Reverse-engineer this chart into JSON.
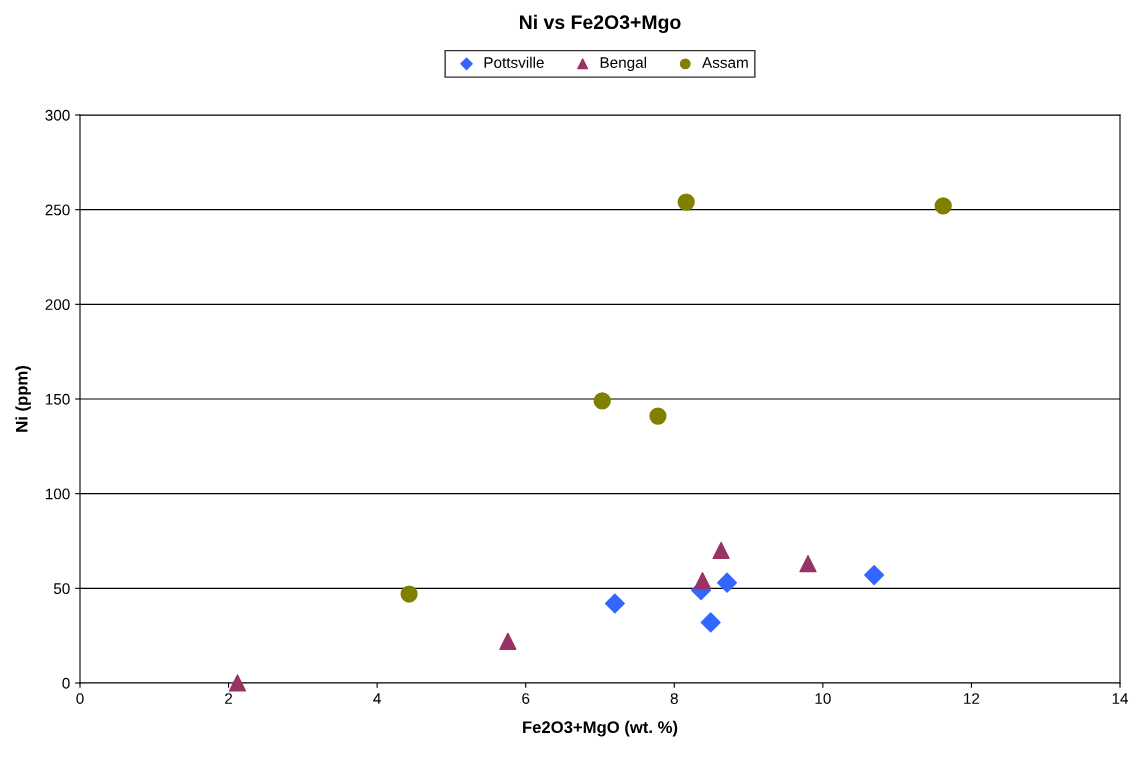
{
  "chart_data": {
    "type": "scatter",
    "title": "Ni vs Fe2O3+Mgo",
    "xlabel": "Fe2O3+MgO (wt. %)",
    "ylabel": "Ni (ppm)",
    "xlim": [
      0,
      14
    ],
    "xticks": [
      0,
      2,
      4,
      6,
      8,
      10,
      12,
      14
    ],
    "ylim": [
      0,
      300
    ],
    "yticks": [
      0,
      50,
      100,
      150,
      200,
      250,
      300
    ],
    "grid": "y",
    "legend": "top",
    "series": [
      {
        "name": "Pottsville",
        "color": "#3366ff",
        "marker": "diamond",
        "x": [
          7.2,
          8.36,
          8.71,
          8.49,
          10.69
        ],
        "values": [
          42,
          49,
          53,
          32,
          57
        ]
      },
      {
        "name": "Bengal",
        "color": "#993366",
        "marker": "triangle",
        "x": [
          2.12,
          5.76,
          8.38,
          8.63,
          9.8
        ],
        "values": [
          0,
          22,
          54,
          70,
          63
        ]
      },
      {
        "name": "Assam",
        "color": "#808000",
        "marker": "circle",
        "x": [
          4.43,
          7.03,
          7.78,
          8.16,
          11.62
        ],
        "values": [
          47,
          149,
          141,
          254,
          252
        ]
      }
    ]
  }
}
